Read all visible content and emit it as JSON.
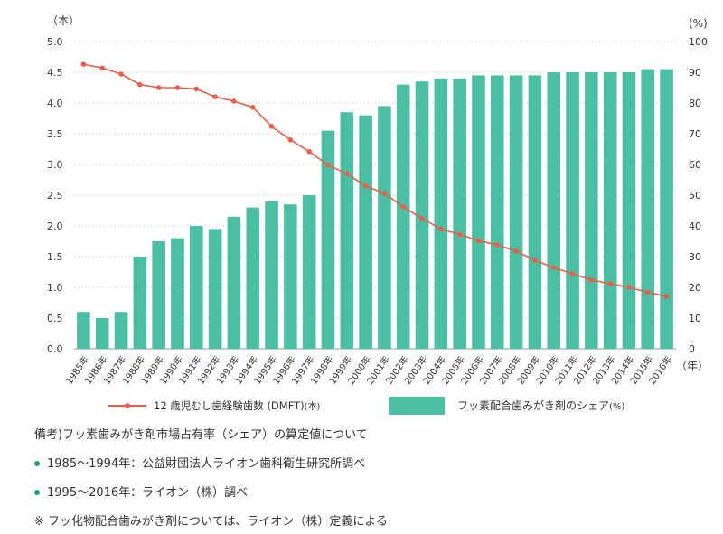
{
  "chart_data": {
    "type": "bar+line",
    "categories": [
      "1985年",
      "1986年",
      "1987年",
      "1988年",
      "1989年",
      "1990年",
      "1991年",
      "1992年",
      "1993年",
      "1994年",
      "1995年",
      "1996年",
      "1997年",
      "1998年",
      "1999年",
      "2000年",
      "2001年",
      "2002年",
      "2003年",
      "2004年",
      "2005年",
      "2006年",
      "2007年",
      "2008年",
      "2009年",
      "2010年",
      "2011年",
      "2012年",
      "2013年",
      "2014年",
      "2015年",
      "2016年"
    ],
    "left_axis": {
      "unit": "（本）",
      "ticks": [
        "0.0",
        "0.5",
        "1.0",
        "1.5",
        "2.0",
        "2.5",
        "3.0",
        "3.5",
        "4.0",
        "4.5",
        "5.0"
      ],
      "ylim": [
        0,
        5
      ]
    },
    "right_axis": {
      "unit": "(%)",
      "ticks": [
        "0",
        "10",
        "20",
        "30",
        "40",
        "50",
        "60",
        "70",
        "80",
        "90",
        "100"
      ],
      "ylim": [
        0,
        100
      ]
    },
    "x_unit": "（年）",
    "grid": true,
    "bar_series": {
      "name": "フッ素配合歯みがき剤のシェア",
      "unit": "(%)",
      "color": "#4bbfa3",
      "axis": "right",
      "values": [
        12,
        10,
        12,
        30,
        35,
        36,
        40,
        39,
        43,
        46,
        48,
        47,
        50,
        71,
        77,
        76,
        79,
        86,
        87,
        88,
        88,
        89,
        89,
        89,
        89,
        90,
        90,
        90,
        90,
        90,
        91,
        91
      ]
    },
    "line_series": {
      "name": "12 歳児むし歯経験歯数 (DMFT)",
      "unit": "(本)",
      "color": "#e8604c",
      "axis": "left",
      "values": [
        4.63,
        4.57,
        4.47,
        4.3,
        4.25,
        4.25,
        4.23,
        4.1,
        4.03,
        3.93,
        3.62,
        3.4,
        3.21,
        2.99,
        2.85,
        2.65,
        2.53,
        2.31,
        2.12,
        1.95,
        1.86,
        1.76,
        1.69,
        1.59,
        1.44,
        1.32,
        1.22,
        1.12,
        1.06,
        1.0,
        0.92,
        0.85
      ]
    }
  },
  "notes": {
    "heading": "備考)フッ素歯みがき剤市場占有率（シェア）の算定値について",
    "bullets": [
      "1985〜1994年：公益財団法人ライオン歯科衛生研究所調べ",
      "1995〜2016年：ライオン（株）調べ"
    ],
    "footnote": "※ フッ化物配合歯みがき剤については、ライオン（株）定義による"
  }
}
